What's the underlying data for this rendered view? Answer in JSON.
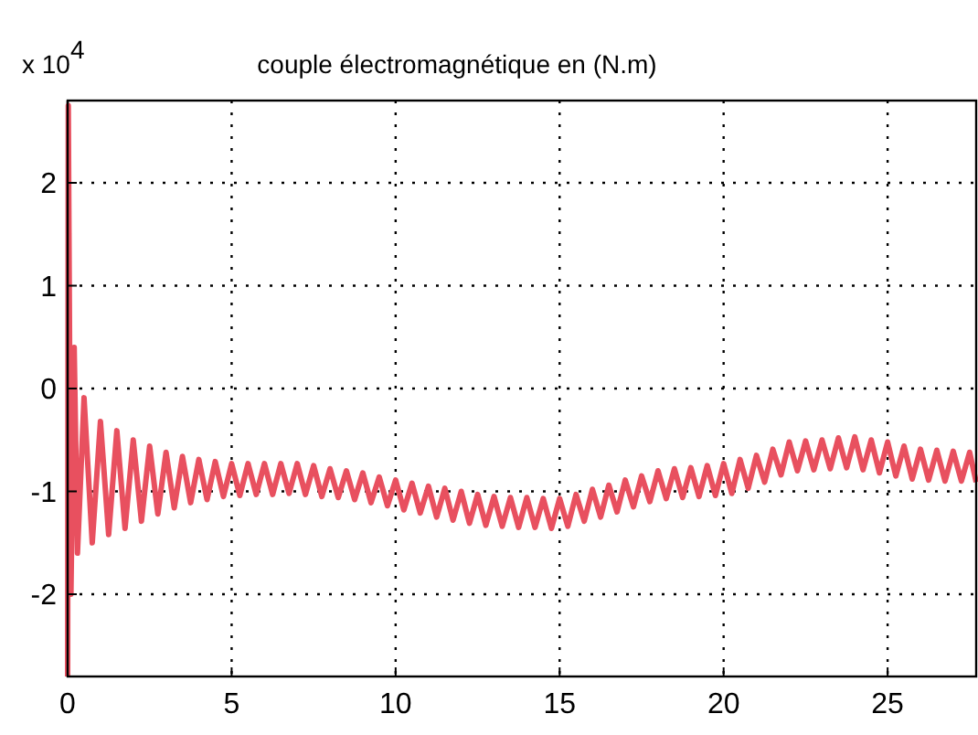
{
  "chart_data": {
    "type": "line",
    "title": "couple électromagnétique en (N.m)",
    "annotations": [
      "x 10$^{4}$"
    ],
    "x": [
      0,
      0.02,
      0.1,
      0.2,
      0.3,
      0.5,
      0.75,
      1,
      1.25,
      1.5,
      1.75,
      2,
      2.25,
      2.5,
      2.75,
      3,
      3.25,
      3.5,
      3.75,
      4,
      4.25,
      4.5,
      4.75,
      5,
      5.25,
      5.5,
      5.75,
      6,
      6.25,
      6.5,
      6.75,
      7,
      7.25,
      7.5,
      7.75,
      8,
      8.25,
      8.5,
      8.75,
      9,
      9.25,
      9.5,
      9.75,
      10,
      10.25,
      10.5,
      10.75,
      11,
      11.25,
      11.5,
      11.75,
      12,
      12.25,
      12.5,
      12.75,
      13,
      13.25,
      13.5,
      13.75,
      14,
      14.25,
      14.5,
      14.75,
      15,
      15.25,
      15.5,
      15.75,
      16,
      16.25,
      16.5,
      16.75,
      17,
      17.25,
      17.5,
      17.75,
      18,
      18.25,
      18.5,
      18.75,
      19,
      19.25,
      19.5,
      19.75,
      20,
      20.25,
      20.5,
      20.75,
      21,
      21.25,
      21.5,
      21.75,
      22,
      22.25,
      22.5,
      22.75,
      23,
      23.25,
      23.5,
      23.75,
      24,
      24.25,
      24.5,
      24.75,
      25,
      25.25,
      25.5,
      25.75,
      26,
      26.25,
      26.5,
      26.75,
      27,
      27.25,
      27.5,
      27.7
    ],
    "series": [
      {
        "color": "#e8505f",
        "values": [
          -2.8,
          2.75,
          -2,
          0.4,
          -1.6,
          -0.09,
          -1.5,
          -0.32,
          -1.42,
          -0.41,
          -1.36,
          -0.5,
          -1.29,
          -0.56,
          -1.22,
          -0.62,
          -1.16,
          -0.66,
          -1.11,
          -0.69,
          -1.08,
          -0.71,
          -1.05,
          -0.73,
          -1.04,
          -0.73,
          -1.03,
          -0.73,
          -1.03,
          -0.73,
          -1.02,
          -0.73,
          -1.03,
          -0.75,
          -1.05,
          -0.78,
          -1.06,
          -0.8,
          -1.08,
          -0.82,
          -1.11,
          -0.86,
          -1.14,
          -0.89,
          -1.18,
          -0.92,
          -1.21,
          -0.95,
          -1.25,
          -0.97,
          -1.28,
          -1,
          -1.31,
          -1.03,
          -1.33,
          -1.05,
          -1.34,
          -1.06,
          -1.35,
          -1.06,
          -1.35,
          -1.07,
          -1.36,
          -1.07,
          -1.34,
          -1.03,
          -1.29,
          -0.98,
          -1.25,
          -0.94,
          -1.2,
          -0.89,
          -1.15,
          -0.85,
          -1.1,
          -0.8,
          -1.07,
          -0.78,
          -1.06,
          -0.77,
          -1.05,
          -0.75,
          -1.04,
          -0.73,
          -1.02,
          -0.69,
          -0.97,
          -0.65,
          -0.91,
          -0.59,
          -0.84,
          -0.52,
          -0.8,
          -0.51,
          -0.79,
          -0.5,
          -0.78,
          -0.48,
          -0.77,
          -0.47,
          -0.79,
          -0.5,
          -0.82,
          -0.52,
          -0.85,
          -0.56,
          -0.88,
          -0.59,
          -0.89,
          -0.6,
          -0.9,
          -0.61,
          -0.9,
          -0.62,
          -0.91
        ]
      }
    ],
    "xlim": [
      0,
      27.7
    ],
    "xticks": [
      0,
      5,
      10,
      15,
      20,
      25
    ],
    "ylim": [
      -2.8,
      2.8
    ],
    "yticks": [
      -2,
      -1,
      0,
      1,
      2
    ],
    "grid": true
  }
}
